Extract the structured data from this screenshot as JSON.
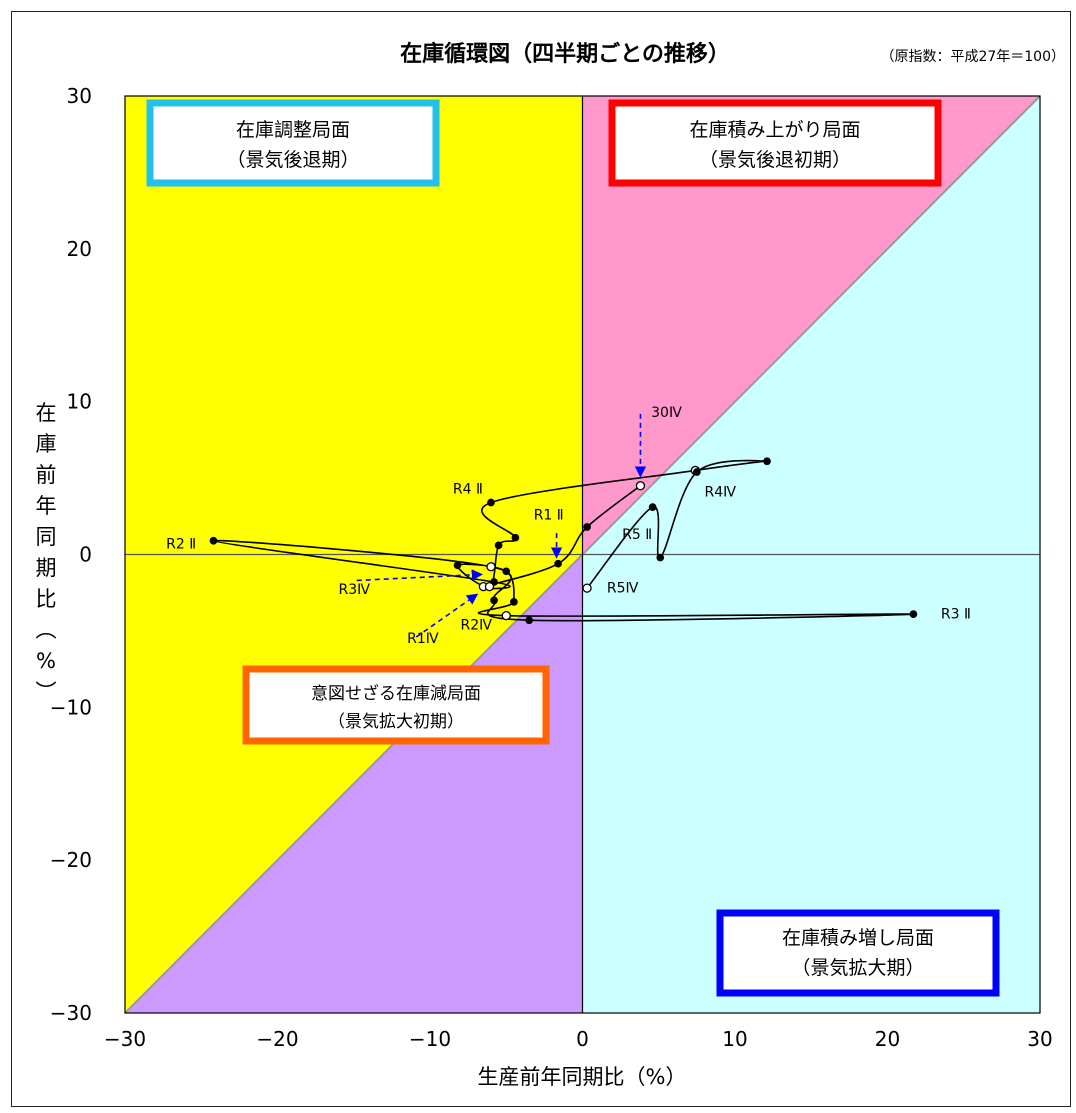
{
  "chart_data": {
    "type": "scatter",
    "title": "在庫循環図（四半期ごとの推移）",
    "subtitle": "（原指数：平成27年＝100）",
    "xlabel": "生産前年同期比（%）",
    "ylabel": "在庫前年同期比（%）",
    "xlim": [
      -30,
      30
    ],
    "ylim": [
      -30,
      30
    ],
    "xticks": [
      "−30",
      "−20",
      "−10",
      "0",
      "10",
      "20",
      "30"
    ],
    "yticks": [
      "30",
      "20",
      "10",
      "0",
      "−10",
      "−20",
      "−30"
    ],
    "grid": false,
    "legend": "none",
    "phases": [
      {
        "key": "adjust",
        "line1": "在庫調整局面",
        "line2": "（景気後退期）",
        "fill": "#ffff00",
        "border": "#22c0ec"
      },
      {
        "key": "accumulate",
        "line1": "在庫積み上がり局面",
        "line2": "（景気後退初期）",
        "fill": "#ff99cc",
        "border": "#ff0000"
      },
      {
        "key": "unintended",
        "line1": "意図せざる在庫減局面",
        "line2": "（景気拡大初期）",
        "fill": "#cc99ff",
        "border": "#ff6600"
      },
      {
        "key": "build",
        "line1": "在庫積み増し局面",
        "line2": "（景気拡大期）",
        "fill": "#ccffff",
        "border": "#0000ff"
      }
    ],
    "series": [
      {
        "points": [
          {
            "x": 3.8,
            "y": 4.5,
            "marker": "open"
          },
          {
            "x": 0.3,
            "y": 1.8,
            "marker": "filled"
          },
          {
            "x": -1.6,
            "y": -0.6,
            "marker": "filled"
          },
          {
            "x": -6.5,
            "y": -2.1,
            "marker": "open"
          },
          {
            "x": -5.8,
            "y": -1.8,
            "marker": "filled"
          },
          {
            "x": -24.2,
            "y": 0.9,
            "marker": "filled"
          },
          {
            "x": -6.0,
            "y": -0.8,
            "marker": "open"
          },
          {
            "x": -5.8,
            "y": -3.0,
            "marker": "filled"
          },
          {
            "x": -3.5,
            "y": -4.3,
            "marker": "filled"
          },
          {
            "x": 21.7,
            "y": -3.9,
            "marker": "filled"
          },
          {
            "x": -5.0,
            "y": -4.0,
            "marker": "open"
          },
          {
            "x": -4.5,
            "y": -3.1,
            "marker": "filled"
          },
          {
            "x": -5.0,
            "y": -1.1,
            "marker": "filled"
          },
          {
            "x": -8.2,
            "y": -0.7,
            "marker": "filled"
          },
          {
            "x": -6.1,
            "y": -2.1,
            "marker": "open"
          },
          {
            "x": -5.5,
            "y": 0.6,
            "marker": "filled"
          },
          {
            "x": -4.4,
            "y": 1.1,
            "marker": "filled"
          },
          {
            "x": -6.0,
            "y": 3.4,
            "marker": "filled"
          },
          {
            "x": 7.4,
            "y": 5.5,
            "marker": "open"
          },
          {
            "x": 12.1,
            "y": 6.1,
            "marker": "filled"
          },
          {
            "x": 7.5,
            "y": 5.4,
            "marker": "filled"
          },
          {
            "x": 5.1,
            "y": -0.2,
            "marker": "filled"
          },
          {
            "x": 4.6,
            "y": 3.1,
            "marker": "filled"
          },
          {
            "x": 0.3,
            "y": -2.2,
            "marker": "open"
          }
        ]
      }
    ],
    "point_labels": [
      {
        "text": "30Ⅳ",
        "x": 4.5,
        "y": 9.0
      },
      {
        "text": "R1 Ⅱ",
        "x": -3.2,
        "y": 2.3
      },
      {
        "text": "R1Ⅳ",
        "x": -11.5,
        "y": -5.8
      },
      {
        "text": "R2 Ⅱ",
        "x": -27.3,
        "y": 0.4
      },
      {
        "text": "R2Ⅳ",
        "x": -8.0,
        "y": -4.9
      },
      {
        "text": "R3 Ⅱ",
        "x": 23.5,
        "y": -4.2
      },
      {
        "text": "R3Ⅳ",
        "x": -16.0,
        "y": -2.6
      },
      {
        "text": "R4 Ⅱ",
        "x": -8.5,
        "y": 4.0
      },
      {
        "text": "R4Ⅳ",
        "x": 8.0,
        "y": 3.8
      },
      {
        "text": "R5 Ⅱ",
        "x": 2.6,
        "y": 1.0
      },
      {
        "text": "R5Ⅳ",
        "x": 1.6,
        "y": -2.5
      }
    ],
    "arrows": [
      {
        "from": [
          3.8,
          9.2
        ],
        "to": [
          3.8,
          5.1
        ]
      },
      {
        "from": [
          -1.7,
          1.4
        ],
        "to": [
          -1.7,
          -0.2
        ]
      },
      {
        "from": [
          -10.9,
          -5.4
        ],
        "to": [
          -6.9,
          -2.6
        ]
      },
      {
        "from": [
          -14.8,
          -1.7
        ],
        "to": [
          -6.6,
          -1.3
        ]
      }
    ],
    "colors": {
      "frame": "#000000",
      "line": "#000000",
      "arrow": "#0000ff"
    }
  }
}
